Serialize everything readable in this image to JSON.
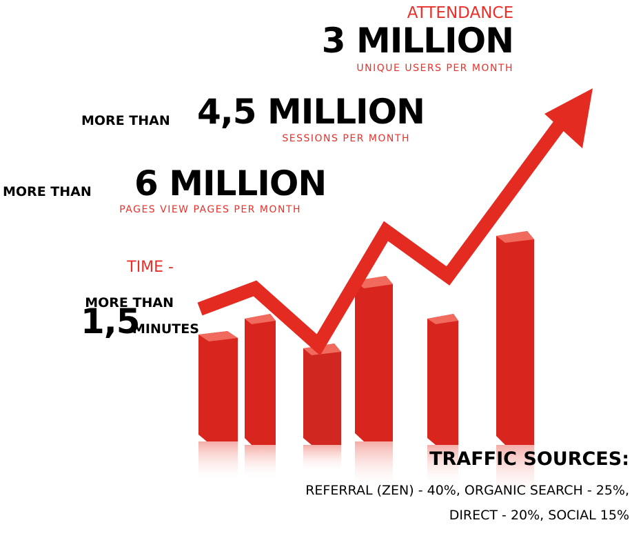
{
  "attendance": {
    "label": "ATTENDANCE",
    "value": "3 MILLION",
    "caption": "UNIQUE USERS PER MONTH"
  },
  "sessions": {
    "prefix": "MORE THAN",
    "value": "4,5 MILLION",
    "caption": "SESSIONS PER MONTH"
  },
  "pages": {
    "prefix": "MORE THAN",
    "value": "6 MILLION",
    "caption": "PAGES VIEW PAGES PER MONTH"
  },
  "time": {
    "label": "TIME -",
    "prefix": "MORE THAN",
    "value": "1,5",
    "unit": "MINUTES"
  },
  "traffic": {
    "title": "TRAFFIC SOURCES:",
    "lines": [
      "REFERRAL (ZEN) - 40%, ORGANIC SEARCH - 25%,",
      "DIRECT - 20%, SOCIAL 15%"
    ]
  }
}
